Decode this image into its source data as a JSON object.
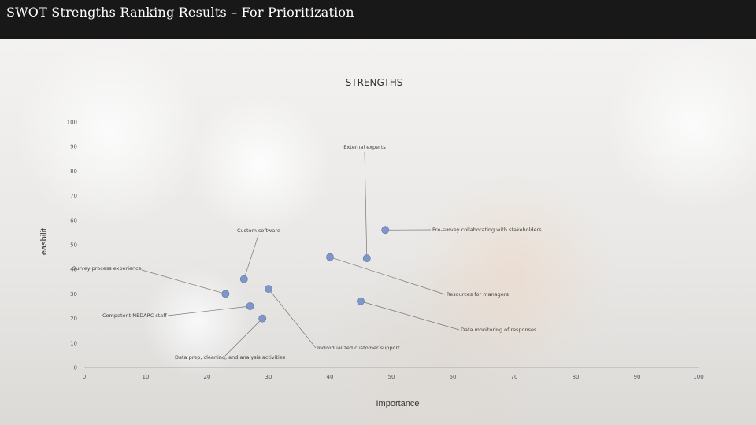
{
  "header": {
    "title": "SWOT Strengths Ranking Results – For Prioritization"
  },
  "chart_data": {
    "type": "scatter",
    "title": "STRENGTHS",
    "xlabel": "Importance",
    "ylabel": "easbilit",
    "xlim": [
      0,
      100
    ],
    "ylim": [
      0,
      100
    ],
    "xticks": [
      0,
      10,
      20,
      30,
      40,
      50,
      60,
      70,
      80,
      90,
      100
    ],
    "yticks": [
      0,
      10,
      20,
      30,
      40,
      50,
      60,
      70,
      80,
      90,
      100
    ],
    "grid": false,
    "marker_color": "#7f97c6",
    "points": [
      {
        "label": "External experts",
        "x": 46,
        "y": 44.5
      },
      {
        "label": "Pre-survey collaborating with stakeholders",
        "x": 49,
        "y": 56
      },
      {
        "label": "Custom software",
        "x": 26,
        "y": 36
      },
      {
        "label": "Survey process experience",
        "x": 23,
        "y": 30
      },
      {
        "label": "Resources for managers",
        "x": 40,
        "y": 45
      },
      {
        "label": "Competent NEDARC staff",
        "x": 27,
        "y": 25
      },
      {
        "label": "Data monitoring of responses",
        "x": 45,
        "y": 27
      },
      {
        "label": "Individualized customer support",
        "x": 30,
        "y": 32
      },
      {
        "label": "Data prep, cleaning, and analysis activities",
        "x": 29,
        "y": 20
      }
    ]
  }
}
